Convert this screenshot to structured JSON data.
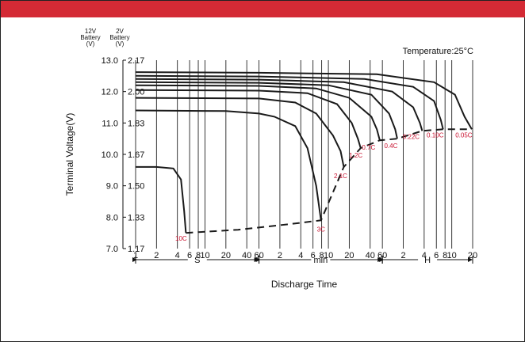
{
  "colors": {
    "top_bar": "#d42a35",
    "curve": "#1a1a1a",
    "rate_label": "#c8102e"
  },
  "chart_data": {
    "type": "line",
    "title": "",
    "annotation": "Temperature:25°C",
    "ylabel": "Terminal Voltage(V)",
    "xlabel": "Discharge Time",
    "y_header_12v": [
      "12V",
      "Battery",
      "(V)"
    ],
    "y_header_2v": [
      "2V",
      "Battery",
      "(V)"
    ],
    "ylim": [
      7.0,
      13.0
    ],
    "y_ticks": [
      {
        "v12": "13.0",
        "v2": "2.17",
        "value": 13.0
      },
      {
        "v12": "12.0",
        "v2": "2.00",
        "value": 12.0
      },
      {
        "v12": "11.0",
        "v2": "1.83",
        "value": 11.0
      },
      {
        "v12": "10.0",
        "v2": "1.67",
        "value": 10.0
      },
      {
        "v12": "9.0",
        "v2": "1.50",
        "value": 9.0
      },
      {
        "v12": "8.0",
        "v2": "1.33",
        "value": 8.0
      },
      {
        "v12": "7.0",
        "v2": "1.17",
        "value": 7.0
      }
    ],
    "x_scale": "log",
    "x_unit": "seconds",
    "x_ticks": [
      {
        "label": "1",
        "sec": 1
      },
      {
        "label": "2",
        "sec": 2
      },
      {
        "label": "4",
        "sec": 4
      },
      {
        "label": "6",
        "sec": 6
      },
      {
        "label": "8",
        "sec": 8
      },
      {
        "label": "10",
        "sec": 10
      },
      {
        "label": "20",
        "sec": 20
      },
      {
        "label": "40",
        "sec": 40
      },
      {
        "label": "60",
        "sec": 60
      },
      {
        "label": "2",
        "sec": 120
      },
      {
        "label": "4",
        "sec": 240
      },
      {
        "label": "6",
        "sec": 360
      },
      {
        "label": "8",
        "sec": 480
      },
      {
        "label": "10",
        "sec": 600
      },
      {
        "label": "20",
        "sec": 1200
      },
      {
        "label": "40",
        "sec": 2400
      },
      {
        "label": "60",
        "sec": 3600
      },
      {
        "label": "2",
        "sec": 7200
      },
      {
        "label": "4",
        "sec": 14400
      },
      {
        "label": "6",
        "sec": 21600
      },
      {
        "label": "8",
        "sec": 28800
      },
      {
        "label": "10",
        "sec": 36000
      },
      {
        "label": "20",
        "sec": 72000
      }
    ],
    "x_units": [
      {
        "label": "S",
        "from": 1,
        "to": 60
      },
      {
        "label": "min",
        "from": 60,
        "to": 3600
      },
      {
        "label": "H",
        "from": 3600,
        "to": 72000
      }
    ],
    "series": [
      {
        "name": "10C",
        "points": [
          [
            1,
            9.6
          ],
          [
            2,
            9.6
          ],
          [
            3.5,
            9.55
          ],
          [
            4.5,
            9.2
          ],
          [
            5,
            8.2
          ],
          [
            5.3,
            7.5
          ]
        ]
      },
      {
        "name": "3C",
        "points": [
          [
            1,
            11.4
          ],
          [
            20,
            11.38
          ],
          [
            60,
            11.3
          ],
          [
            100,
            11.2
          ],
          [
            200,
            10.9
          ],
          [
            300,
            10.2
          ],
          [
            400,
            9.0
          ],
          [
            450,
            8.2
          ],
          [
            470,
            7.9
          ]
        ]
      },
      {
        "name": "2.1C",
        "points": [
          [
            1,
            11.8
          ],
          [
            60,
            11.78
          ],
          [
            200,
            11.65
          ],
          [
            400,
            11.3
          ],
          [
            700,
            10.6
          ],
          [
            900,
            10.1
          ],
          [
            1000,
            9.6
          ]
        ]
      },
      {
        "name": "1.2C",
        "points": [
          [
            1,
            12.05
          ],
          [
            60,
            12.03
          ],
          [
            300,
            11.95
          ],
          [
            800,
            11.6
          ],
          [
            1300,
            11.0
          ],
          [
            1600,
            10.5
          ],
          [
            1750,
            10.2
          ]
        ]
      },
      {
        "name": "0.7C",
        "points": [
          [
            1,
            12.2
          ],
          [
            60,
            12.18
          ],
          [
            400,
            12.1
          ],
          [
            1200,
            11.8
          ],
          [
            2500,
            11.2
          ],
          [
            3000,
            10.8
          ],
          [
            3300,
            10.45
          ]
        ]
      },
      {
        "name": "0.4C",
        "points": [
          [
            1,
            12.3
          ],
          [
            60,
            12.28
          ],
          [
            600,
            12.2
          ],
          [
            2500,
            11.9
          ],
          [
            4500,
            11.3
          ],
          [
            5500,
            10.8
          ],
          [
            5900,
            10.5
          ]
        ]
      },
      {
        "name": "0.22C",
        "points": [
          [
            1,
            12.4
          ],
          [
            60,
            12.38
          ],
          [
            1000,
            12.3
          ],
          [
            5000,
            12.0
          ],
          [
            10000,
            11.5
          ],
          [
            12500,
            11.0
          ],
          [
            13500,
            10.75
          ]
        ]
      },
      {
        "name": "0.10C",
        "points": [
          [
            1,
            12.5
          ],
          [
            60,
            12.48
          ],
          [
            2000,
            12.4
          ],
          [
            10000,
            12.15
          ],
          [
            20000,
            11.7
          ],
          [
            25000,
            11.1
          ],
          [
            27000,
            10.8
          ]
        ]
      },
      {
        "name": "0.05C",
        "points": [
          [
            1,
            12.62
          ],
          [
            60,
            12.6
          ],
          [
            3000,
            12.55
          ],
          [
            20000,
            12.3
          ],
          [
            40000,
            11.9
          ],
          [
            55000,
            11.2
          ],
          [
            70000,
            10.8
          ]
        ]
      }
    ],
    "final_voltage_line": [
      [
        5.3,
        7.5
      ],
      [
        30,
        7.6
      ],
      [
        200,
        7.8
      ],
      [
        470,
        7.9
      ],
      [
        1000,
        9.6
      ],
      [
        1750,
        10.2
      ],
      [
        3300,
        10.45
      ],
      [
        5900,
        10.5
      ],
      [
        13500,
        10.75
      ],
      [
        27000,
        10.8
      ],
      [
        70000,
        10.8
      ]
    ]
  }
}
